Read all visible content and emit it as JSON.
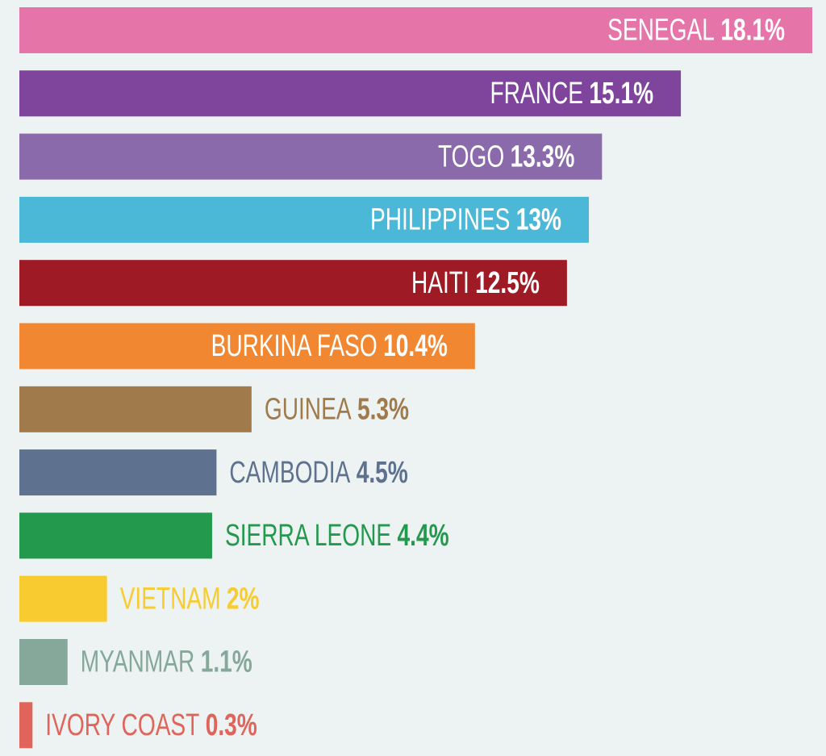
{
  "chart_data": {
    "type": "hbar",
    "categories": [
      "SENEGAL",
      "FRANCE",
      "TOGO",
      "PHILIPPINES",
      "HAITI",
      "BURKINA FASO",
      "GUINEA",
      "CAMBODIA",
      "SIERRA LEONE",
      "VIETNAM",
      "MYANMAR",
      "IVORY COAST"
    ],
    "values": [
      18.1,
      15.1,
      13.3,
      13,
      12.5,
      10.4,
      5.3,
      4.5,
      4.4,
      2,
      1.1,
      0.3
    ],
    "value_labels": [
      "18.1%",
      "15.1%",
      "13.3%",
      "13%",
      "12.5%",
      "10.4%",
      "5.3%",
      "4.5%",
      "4.4%",
      "2%",
      "1.1%",
      "0.3%"
    ],
    "colors": [
      "#e574a9",
      "#7f449b",
      "#8a6aab",
      "#4cb8d7",
      "#9e1a24",
      "#f18731",
      "#a07a4a",
      "#5e718e",
      "#23994d",
      "#f8cb31",
      "#85a89a",
      "#e0645a"
    ]
  }
}
